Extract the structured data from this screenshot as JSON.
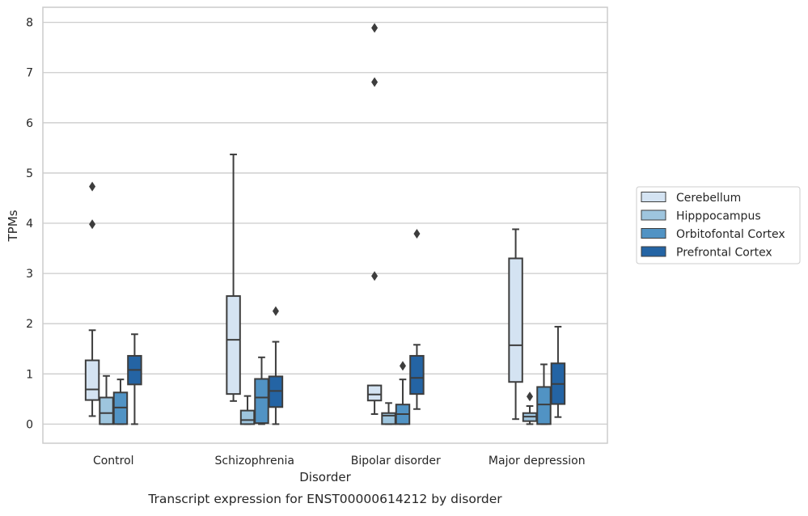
{
  "chart_data": {
    "type": "box",
    "caption": "Transcript expression for ENST00000614212 by disorder",
    "xlabel": "Disorder",
    "ylabel": "TPMs",
    "ylim": [
      -0.38,
      8.3
    ],
    "yticks": [
      0,
      1,
      2,
      3,
      4,
      5,
      6,
      7,
      8
    ],
    "grid": "horizontal",
    "legend_position": "right",
    "categories": [
      "Control",
      "Schizophrenia",
      "Bipolar disorder",
      "Major depression"
    ],
    "series": [
      {
        "name": "Cerebellum",
        "color": "#d4e3f2",
        "boxes": [
          {
            "whisker_low": 0.16,
            "q1": 0.48,
            "median": 0.69,
            "q3": 1.27,
            "whisker_high": 1.87,
            "outliers": [
              3.98,
              4.73
            ]
          },
          {
            "whisker_low": 0.46,
            "q1": 0.6,
            "median": 1.68,
            "q3": 2.55,
            "whisker_high": 5.37,
            "outliers": []
          },
          {
            "whisker_low": 0.2,
            "q1": 0.47,
            "median": 0.59,
            "q3": 0.77,
            "whisker_high": 0.77,
            "outliers": [
              2.95,
              6.81,
              7.89
            ]
          },
          {
            "whisker_low": 0.1,
            "q1": 0.84,
            "median": 1.57,
            "q3": 3.3,
            "whisker_high": 3.88,
            "outliers": []
          }
        ]
      },
      {
        "name": "Hipppocampus",
        "color": "#9ec5de",
        "boxes": [
          {
            "whisker_low": 0.0,
            "q1": 0.0,
            "median": 0.22,
            "q3": 0.53,
            "whisker_high": 0.96,
            "outliers": []
          },
          {
            "whisker_low": 0.0,
            "q1": 0.0,
            "median": 0.08,
            "q3": 0.27,
            "whisker_high": 0.56,
            "outliers": []
          },
          {
            "whisker_low": 0.0,
            "q1": 0.0,
            "median": 0.17,
            "q3": 0.22,
            "whisker_high": 0.42,
            "outliers": []
          },
          {
            "whisker_low": 0.0,
            "q1": 0.06,
            "median": 0.15,
            "q3": 0.22,
            "whisker_high": 0.36,
            "outliers": [
              0.55
            ]
          }
        ]
      },
      {
        "name": "Orbitofontal Cortex",
        "color": "#5193c4",
        "boxes": [
          {
            "whisker_low": 0.0,
            "q1": 0.0,
            "median": 0.33,
            "q3": 0.63,
            "whisker_high": 0.89,
            "outliers": []
          },
          {
            "whisker_low": 0.0,
            "q1": 0.02,
            "median": 0.53,
            "q3": 0.9,
            "whisker_high": 1.33,
            "outliers": []
          },
          {
            "whisker_low": 0.0,
            "q1": 0.0,
            "median": 0.2,
            "q3": 0.39,
            "whisker_high": 0.89,
            "outliers": [
              1.16
            ]
          },
          {
            "whisker_low": 0.0,
            "q1": 0.0,
            "median": 0.39,
            "q3": 0.74,
            "whisker_high": 1.19,
            "outliers": []
          }
        ]
      },
      {
        "name": "Prefrontal Cortex",
        "color": "#2464a4",
        "boxes": [
          {
            "whisker_low": 0.0,
            "q1": 0.79,
            "median": 1.08,
            "q3": 1.36,
            "whisker_high": 1.79,
            "outliers": []
          },
          {
            "whisker_low": 0.0,
            "q1": 0.34,
            "median": 0.66,
            "q3": 0.95,
            "whisker_high": 1.64,
            "outliers": [
              2.25
            ]
          },
          {
            "whisker_low": 0.3,
            "q1": 0.6,
            "median": 0.92,
            "q3": 1.36,
            "whisker_high": 1.58,
            "outliers": [
              3.79
            ]
          },
          {
            "whisker_low": 0.14,
            "q1": 0.4,
            "median": 0.8,
            "q3": 1.21,
            "whisker_high": 1.94,
            "outliers": []
          }
        ]
      }
    ]
  }
}
